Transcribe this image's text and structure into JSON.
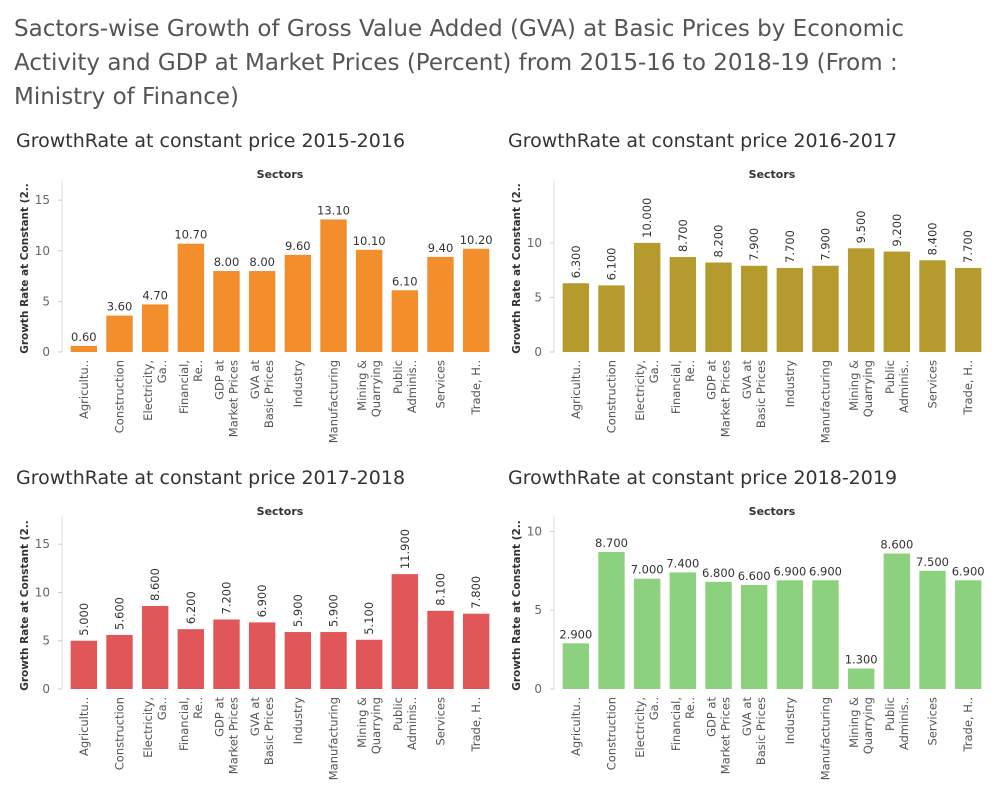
{
  "title": "Sactors-wise Growth of Gross Value Added (GVA) at Basic Prices by Economic Activity and GDP at Market Prices (Percent) from 2015-16 to 2018-19 (From : Ministry of Finance)",
  "chart_data": [
    {
      "type": "bar",
      "title": "GrowthRate at constant price 2015-2016",
      "xlabel": "Sectors",
      "ylabel": "Growth Rate at Constant (2..",
      "categories": [
        "Agricultu..",
        "Construction",
        "Electricity, Ga..",
        "Financial, Re..",
        "GDP at Market Prices",
        "GVA at Basic Prices",
        "Industry",
        "Manufacturing",
        "Mining & Quarrying",
        "Public Adminis..",
        "Services",
        "Trade, H.."
      ],
      "values": [
        0.6,
        3.6,
        4.7,
        10.7,
        8.0,
        8.0,
        9.6,
        13.1,
        10.1,
        6.1,
        9.4,
        10.2
      ],
      "value_labels": [
        "0.60",
        "3.60",
        "4.70",
        "10.70",
        "8.00",
        "8.00",
        "9.60",
        "13.10",
        "10.10",
        "6.10",
        "9.40",
        "10.20"
      ],
      "ylim": [
        0,
        16.5
      ],
      "yticks": [
        0,
        5,
        10,
        15
      ],
      "ytick_labels": [
        "0",
        "5",
        "10",
        "15"
      ],
      "color": "#F28E2B",
      "label_rotation": "horizontal"
    },
    {
      "type": "bar",
      "title": "GrowthRate at constant price 2016-2017",
      "xlabel": "Sectors",
      "ylabel": "Growth Rate at Constant (2..",
      "categories": [
        "Agricultu..",
        "Construction",
        "Electricity, Ga..",
        "Financial, Re..",
        "GDP at Market Prices",
        "GVA at Basic Prices",
        "Industry",
        "Manufacturing",
        "Mining & Quarrying",
        "Public Adminis..",
        "Services",
        "Trade, H.."
      ],
      "values": [
        6.3,
        6.1,
        10.0,
        8.7,
        8.2,
        7.9,
        7.7,
        7.9,
        9.5,
        9.2,
        8.4,
        7.7
      ],
      "value_labels": [
        "6.300",
        "6.100",
        "10.000",
        "8.700",
        "8.200",
        "7.900",
        "7.700",
        "7.900",
        "9.500",
        "9.200",
        "8.400",
        "7.700"
      ],
      "ylim": [
        0,
        15.3
      ],
      "yticks": [
        0,
        5,
        10
      ],
      "ytick_labels": [
        "0",
        "5",
        "10"
      ],
      "color": "#B59A2E",
      "label_rotation": "vertical"
    },
    {
      "type": "bar",
      "title": "GrowthRate at constant price 2017-2018",
      "xlabel": "Sectors",
      "ylabel": "Growth Rate at Constant (2..",
      "categories": [
        "Agricultu..",
        "Construction",
        "Electricity, Ga..",
        "Financial, Re..",
        "GDP at Market Prices",
        "GVA at Basic Prices",
        "Industry",
        "Manufacturing",
        "Mining & Quarrying",
        "Public Adminis..",
        "Services",
        "Trade, H.."
      ],
      "values": [
        5.0,
        5.6,
        8.6,
        6.2,
        7.2,
        6.9,
        5.9,
        5.9,
        5.1,
        11.9,
        8.1,
        7.8
      ],
      "value_labels": [
        "5.000",
        "5.600",
        "8.600",
        "6.200",
        "7.200",
        "6.900",
        "5.900",
        "5.900",
        "5.100",
        "11.900",
        "8.100",
        "7.800"
      ],
      "ylim": [
        0,
        17.3
      ],
      "yticks": [
        0,
        5,
        10,
        15
      ],
      "ytick_labels": [
        "0",
        "5",
        "10",
        "15"
      ],
      "color": "#E15759",
      "label_rotation": "vertical"
    },
    {
      "type": "bar",
      "title": "GrowthRate at constant price 2018-2019",
      "xlabel": "Sectors",
      "ylabel": "Growth Rate at Constant (2..",
      "categories": [
        "Agricultu..",
        "Construction",
        "Electricity, Ga..",
        "Financial, Re..",
        "GDP at Market Prices",
        "GVA at Basic Prices",
        "Industry",
        "Manufacturing",
        "Mining & Quarrying",
        "Public Adminis..",
        "Services",
        "Trade, H.."
      ],
      "values": [
        2.9,
        8.7,
        7.0,
        7.4,
        6.8,
        6.6,
        6.9,
        6.9,
        1.3,
        8.6,
        7.5,
        6.9
      ],
      "value_labels": [
        "2.900",
        "8.700",
        "7.000",
        "7.400",
        "6.800",
        "6.600",
        "6.900",
        "6.900",
        "1.300",
        "8.600",
        "7.500",
        "6.900"
      ],
      "ylim": [
        0,
        10.6
      ],
      "yticks": [
        0,
        5,
        10
      ],
      "ytick_labels": [
        "0",
        "5",
        "10"
      ],
      "color": "#8CD17D",
      "label_rotation": "horizontal"
    }
  ]
}
